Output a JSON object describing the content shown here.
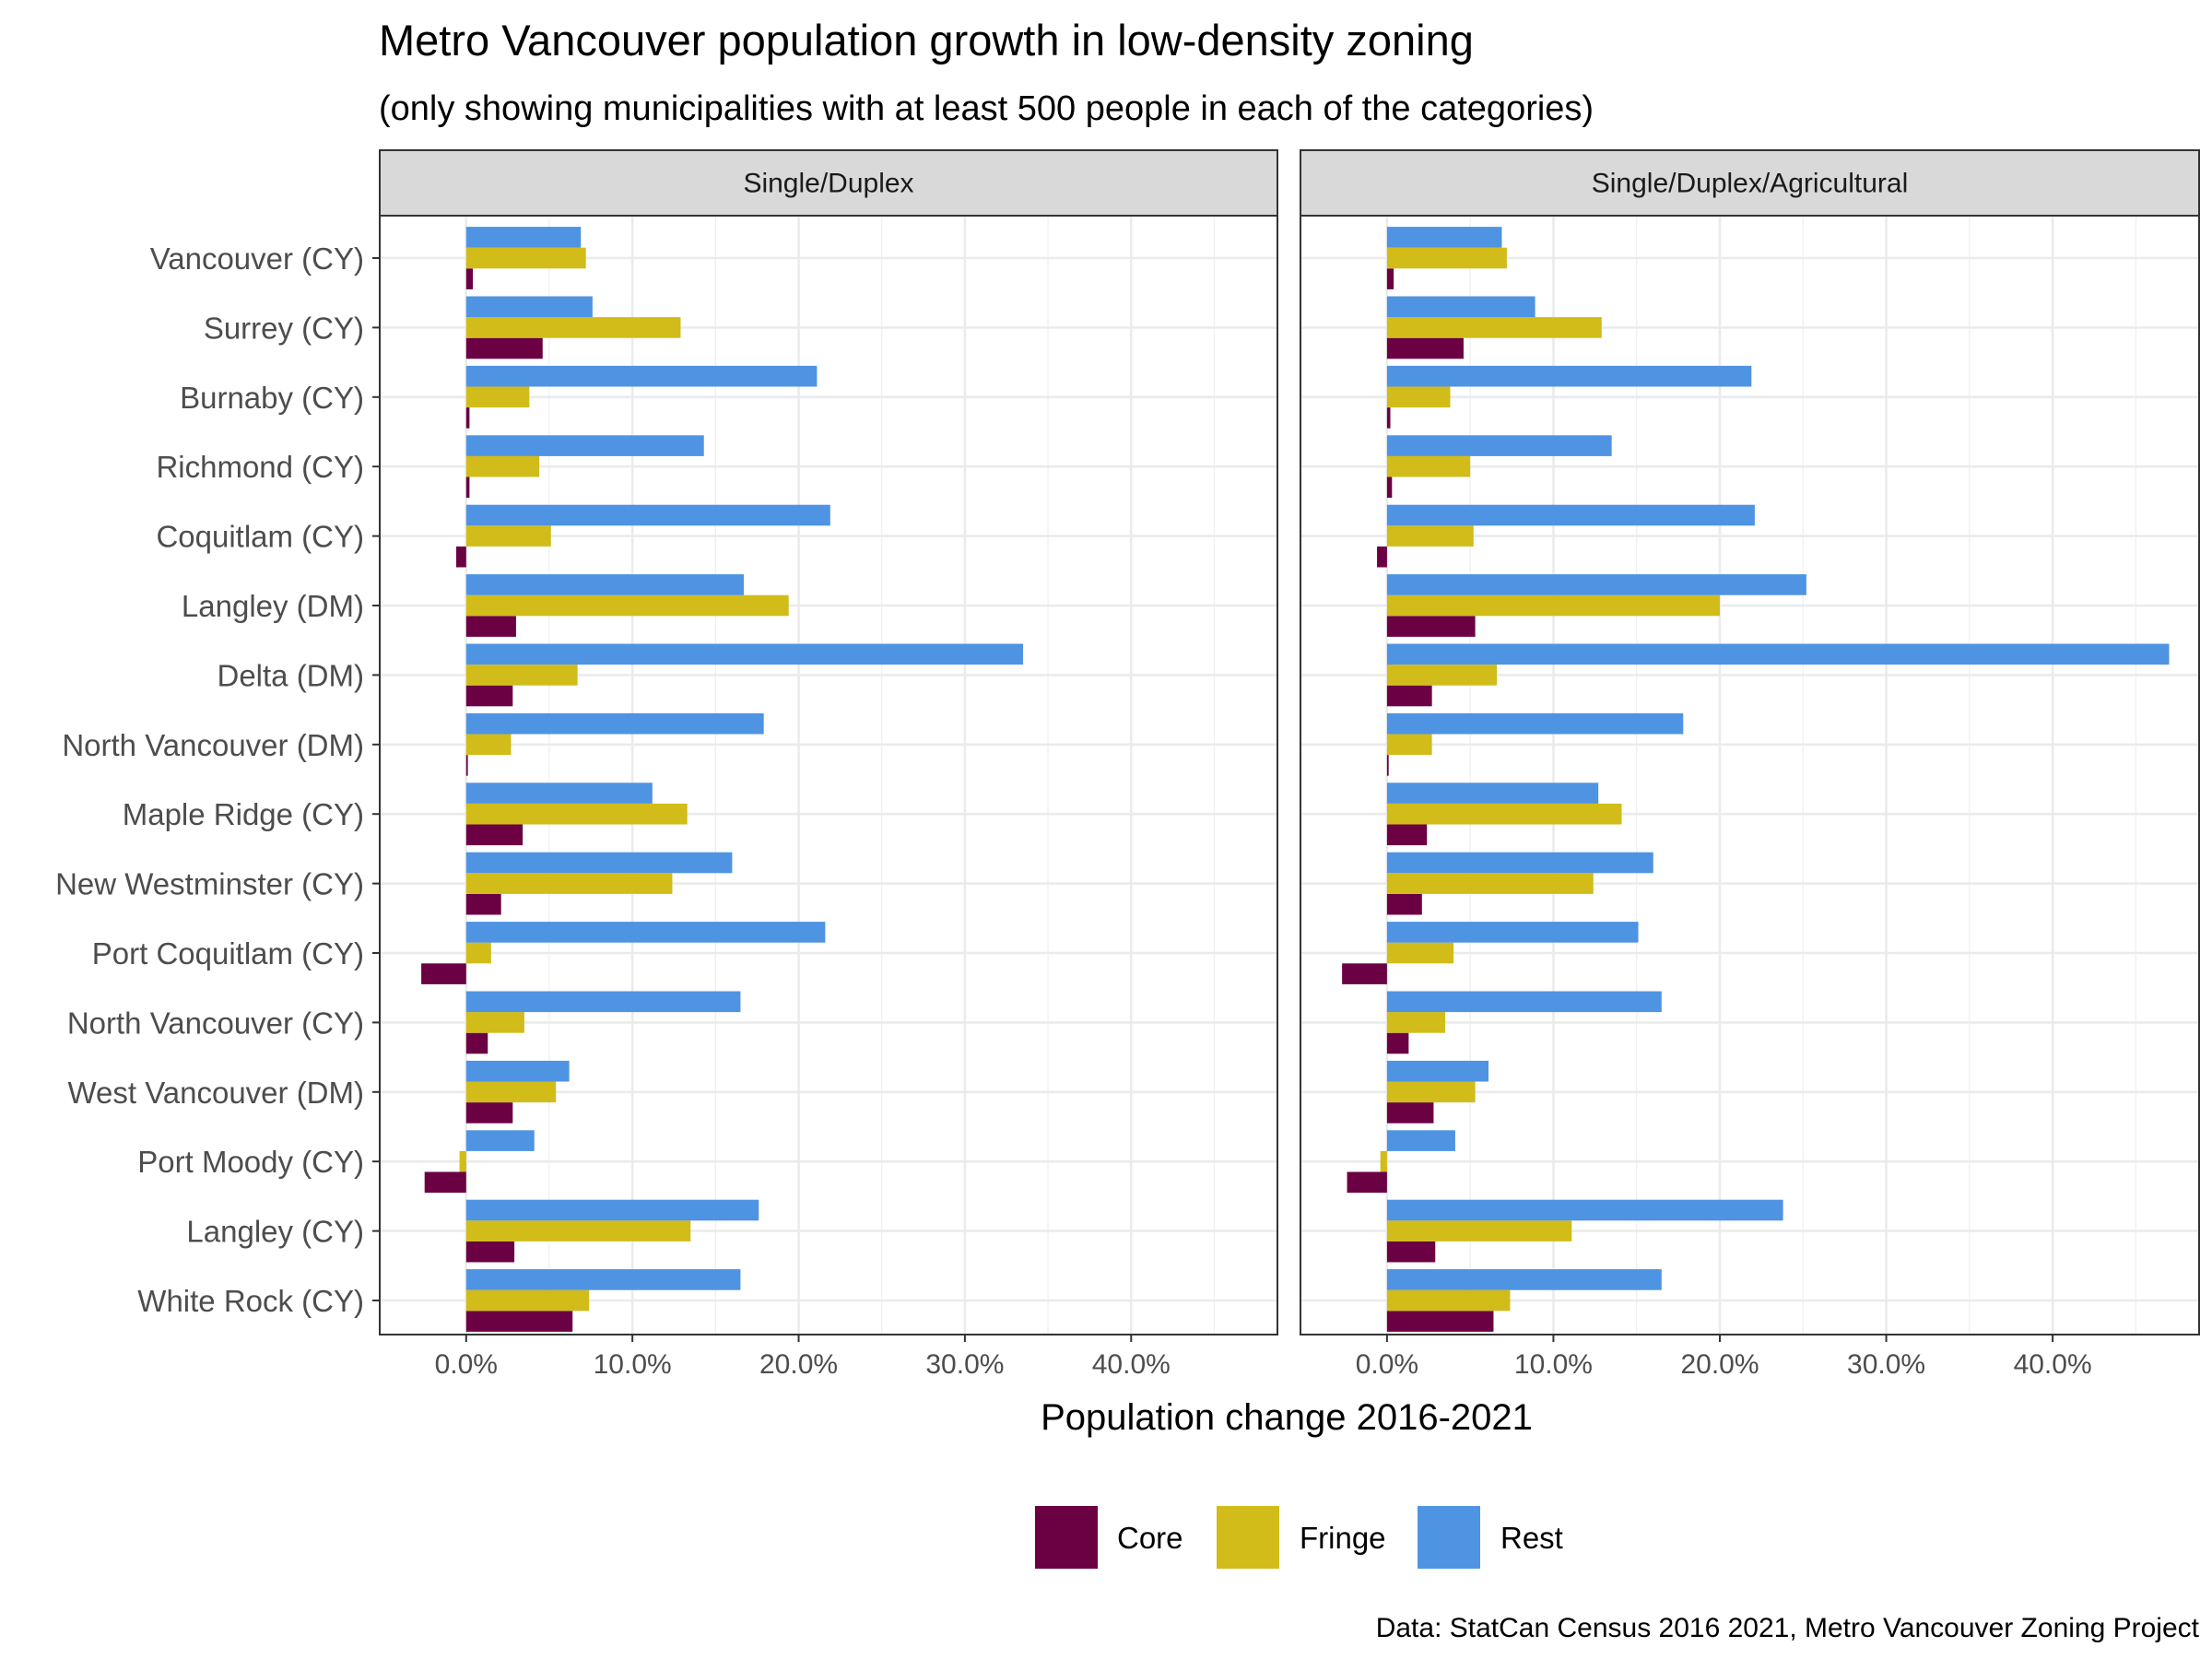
{
  "chart_data": {
    "type": "bar",
    "orientation": "horizontal",
    "title": "Metro Vancouver population growth in low-density zoning",
    "subtitle": "(only showing municipalities with at least 500 people in each of the categories)",
    "xlabel": "Population change 2016-2021",
    "caption": "Data: StatCan Census 2016 2021, Metro Vancouver Zoning Project",
    "xlim": [
      -0.052,
      0.488
    ],
    "x_ticks": [
      0,
      0.1,
      0.2,
      0.3,
      0.4
    ],
    "x_tick_labels": [
      "0.0%",
      "10.0%",
      "20.0%",
      "30.0%",
      "40.0%"
    ],
    "grid": true,
    "legend_position": "bottom",
    "categories": [
      "Vancouver (CY)",
      "Surrey (CY)",
      "Burnaby (CY)",
      "Richmond (CY)",
      "Coquitlam (CY)",
      "Langley (DM)",
      "Delta (DM)",
      "North Vancouver (DM)",
      "Maple Ridge (CY)",
      "New Westminster (CY)",
      "Port Coquitlam (CY)",
      "North Vancouver (CY)",
      "West Vancouver (DM)",
      "Port Moody (CY)",
      "Langley (CY)",
      "White Rock (CY)"
    ],
    "legend": [
      {
        "name": "Core",
        "color": "#6b0042"
      },
      {
        "name": "Fringe",
        "color": "#d1bc1a"
      },
      {
        "name": "Rest",
        "color": "#4f93e3"
      }
    ],
    "panels": [
      {
        "name": "Single/Duplex",
        "series": [
          {
            "name": "Core",
            "color": "#6b0042",
            "values": [
              0.004,
              0.046,
              0.002,
              0.002,
              -0.006,
              0.03,
              0.028,
              0.001,
              0.034,
              0.021,
              -0.027,
              0.013,
              0.028,
              -0.025,
              0.029,
              0.064
            ]
          },
          {
            "name": "Fringe",
            "color": "#d1bc1a",
            "values": [
              0.072,
              0.129,
              0.038,
              0.044,
              0.051,
              0.194,
              0.067,
              0.027,
              0.133,
              0.124,
              0.015,
              0.035,
              0.054,
              -0.004,
              0.135,
              0.074
            ]
          },
          {
            "name": "Rest",
            "color": "#4f93e3",
            "values": [
              0.069,
              0.076,
              0.211,
              0.143,
              0.219,
              0.167,
              0.335,
              0.179,
              0.112,
              0.16,
              0.216,
              0.165,
              0.062,
              0.041,
              0.176,
              0.165
            ]
          }
        ]
      },
      {
        "name": "Single/Duplex/Agricultural",
        "series": [
          {
            "name": "Core",
            "color": "#6b0042",
            "values": [
              0.004,
              0.046,
              0.002,
              0.003,
              -0.006,
              0.053,
              0.027,
              0.001,
              0.024,
              0.021,
              -0.027,
              0.013,
              0.028,
              -0.024,
              0.029,
              0.064
            ]
          },
          {
            "name": "Fringe",
            "color": "#d1bc1a",
            "values": [
              0.072,
              0.129,
              0.038,
              0.05,
              0.052,
              0.2,
              0.066,
              0.027,
              0.141,
              0.124,
              0.04,
              0.035,
              0.053,
              -0.004,
              0.111,
              0.074
            ]
          },
          {
            "name": "Rest",
            "color": "#4f93e3",
            "values": [
              0.069,
              0.089,
              0.219,
              0.135,
              0.221,
              0.252,
              0.47,
              0.178,
              0.127,
              0.16,
              0.151,
              0.165,
              0.061,
              0.041,
              0.238,
              0.165
            ]
          }
        ]
      }
    ]
  }
}
